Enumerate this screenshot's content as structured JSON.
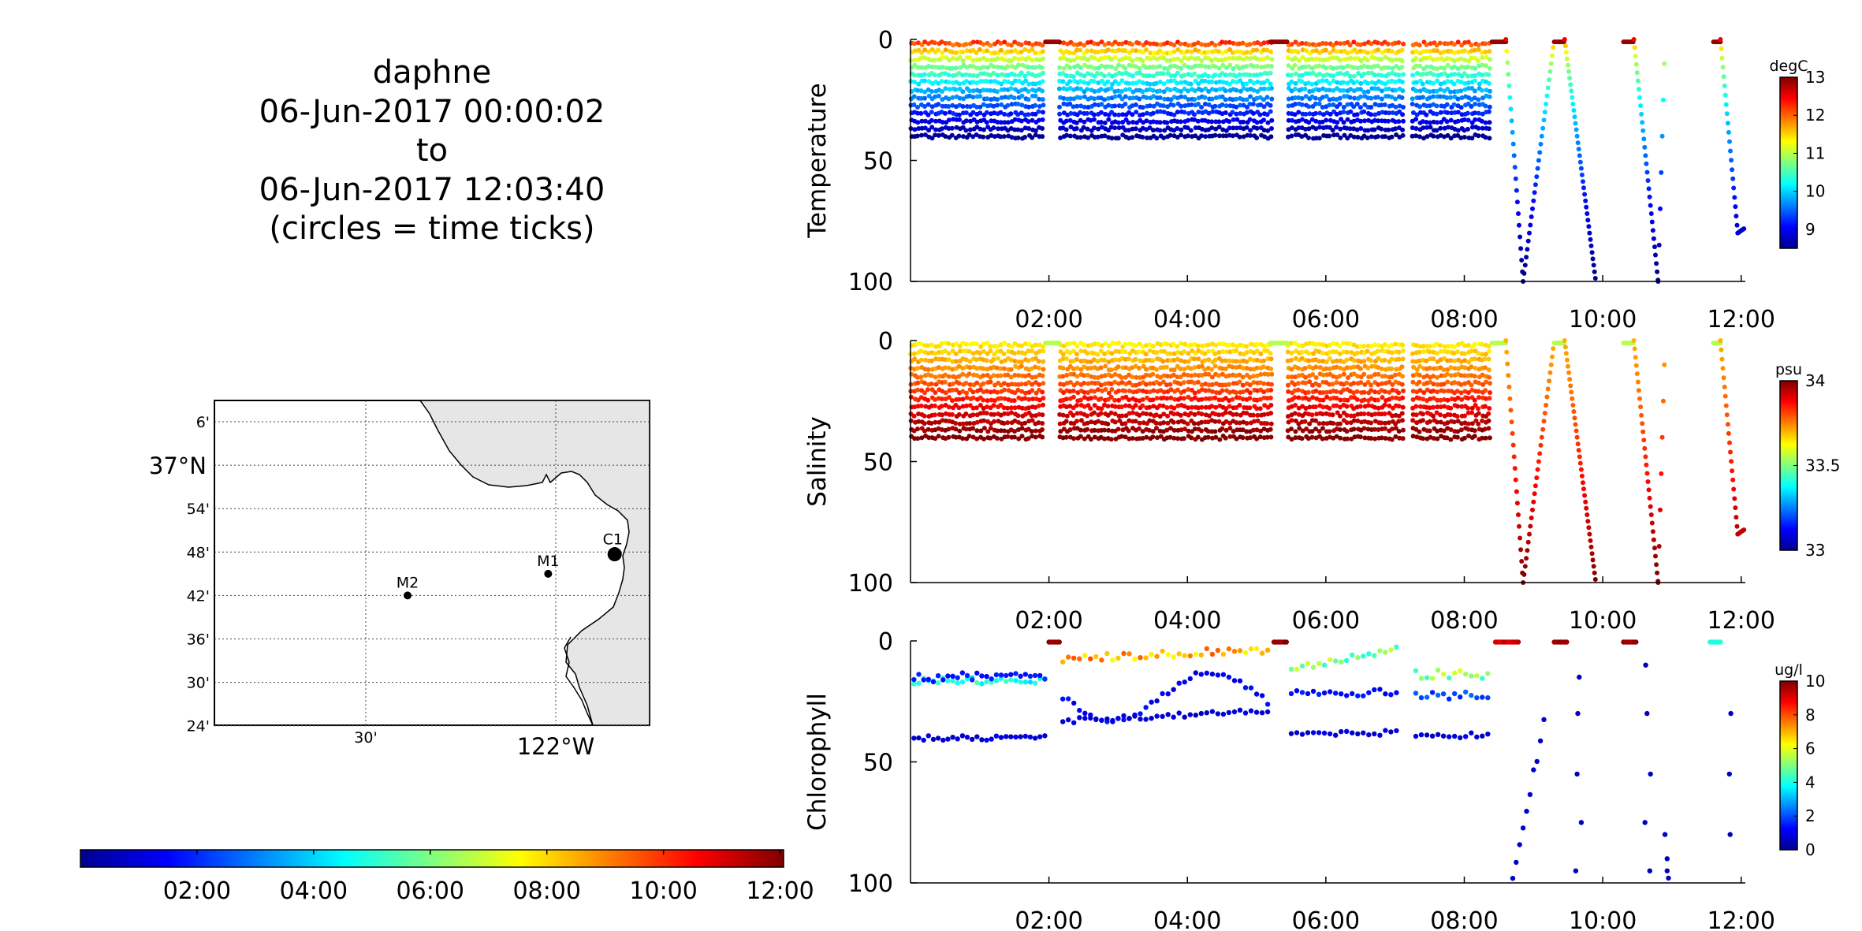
{
  "title": {
    "lines": [
      "daphne",
      "06-Jun-2017 00:00:02",
      "to",
      "06-Jun-2017 12:03:40",
      "(circles = time ticks)"
    ]
  },
  "time_axis": {
    "ticks": [
      "02:00",
      "04:00",
      "06:00",
      "08:00",
      "10:00",
      "12:00"
    ],
    "tick_hours": [
      2,
      4,
      6,
      8,
      10,
      12
    ],
    "range_hours": [
      0.0,
      12.06
    ]
  },
  "map": {
    "lat_ticks": [
      "6'",
      "37°N",
      "54'",
      "48'",
      "42'",
      "36'",
      "30'",
      "24'"
    ],
    "lon_ticks": [
      "30'",
      "122°W"
    ],
    "stations": [
      {
        "name": "M2",
        "lat": 36.7,
        "lon": -122.39
      },
      {
        "name": "M1",
        "lat": 36.75,
        "lon": -122.02
      },
      {
        "name": "C1",
        "lat": 36.8,
        "lon": -121.85
      }
    ],
    "track": {
      "lat": 36.795,
      "lon": -121.845
    }
  },
  "time_colorbar": {
    "ticks": [
      "02:00",
      "04:00",
      "06:00",
      "08:00",
      "10:00",
      "12:00"
    ]
  },
  "chart_data": [
    {
      "type": "scatter",
      "title": "",
      "ylabel": "Temperature",
      "ylim": [
        100,
        0
      ],
      "yticks": [
        "0",
        "50",
        "100"
      ],
      "colorbar": {
        "unit": "degC",
        "range": [
          8.5,
          13
        ],
        "ticks": [
          "13",
          "12",
          "11",
          "10",
          "9"
        ],
        "tick_values": [
          13,
          12,
          11,
          10,
          9
        ]
      },
      "series": {
        "name": "",
        "x_hours": [],
        "depth": [],
        "value": []
      }
    },
    {
      "type": "scatter",
      "title": "",
      "ylabel": "Salinity",
      "ylim": [
        100,
        0
      ],
      "yticks": [
        "0",
        "50",
        "100"
      ],
      "colorbar": {
        "unit": "psu",
        "range": [
          33,
          34
        ],
        "ticks": [
          "34",
          "33.5",
          "33"
        ],
        "tick_values": [
          34,
          33.5,
          33
        ]
      },
      "series": {
        "name": "",
        "x_hours": [],
        "depth": [],
        "value": []
      }
    },
    {
      "type": "scatter",
      "title": "",
      "ylabel": "Chlorophyll",
      "ylim": [
        100,
        0
      ],
      "yticks": [
        "0",
        "50",
        "100"
      ],
      "colorbar": {
        "unit": "ug/l",
        "range": [
          0,
          10
        ],
        "ticks": [
          "10",
          "8",
          "6",
          "4",
          "2",
          "0"
        ],
        "tick_values": [
          10,
          8,
          6,
          4,
          2,
          0
        ]
      },
      "series": {
        "name": "",
        "x_hours": [],
        "depth": [],
        "value": []
      }
    }
  ]
}
